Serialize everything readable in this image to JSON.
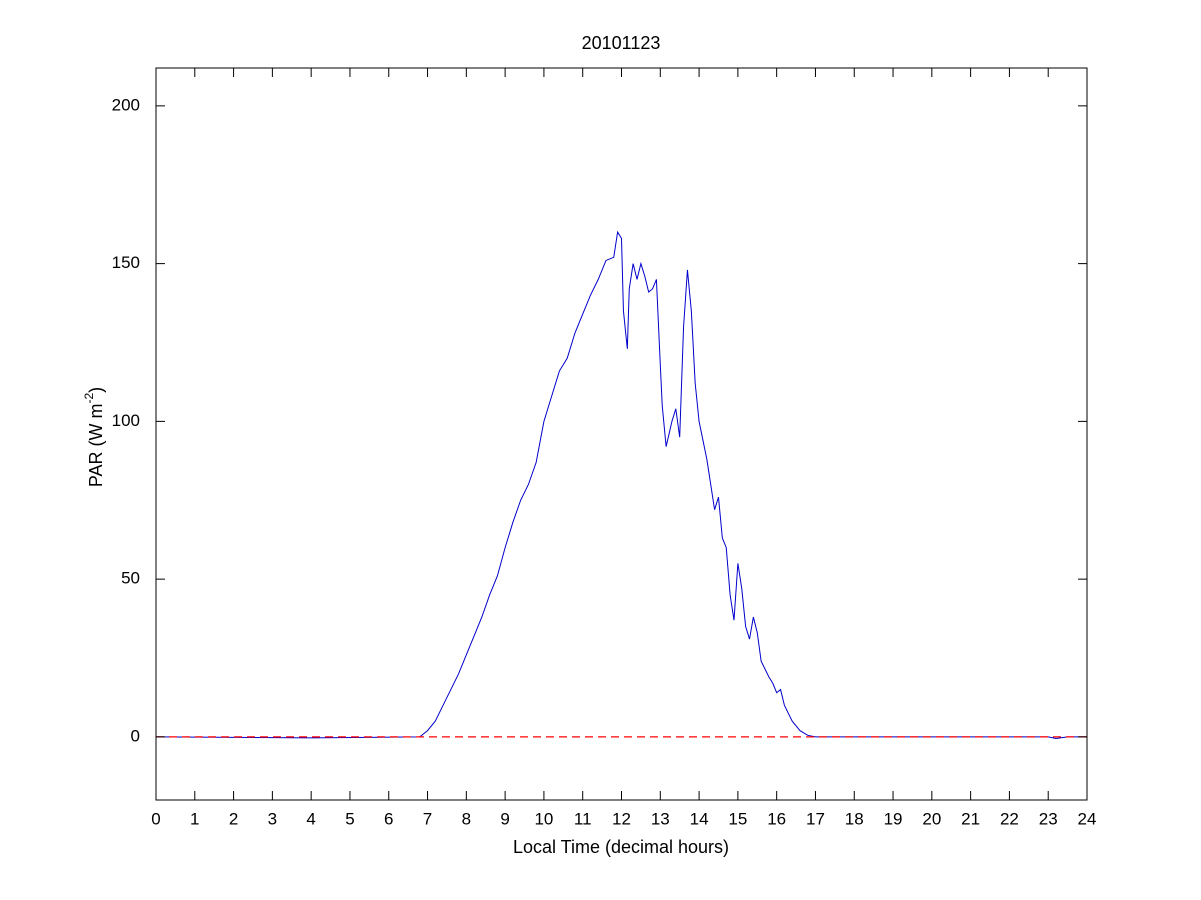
{
  "chart_data": {
    "type": "line",
    "title": "20101123",
    "xlabel": "Local Time (decimal hours)",
    "ylabel": {
      "text": "PAR (W m",
      "superscript": "-2",
      "suffix": ")"
    },
    "xlim": [
      0,
      24
    ],
    "ylim": [
      -20,
      212
    ],
    "xticks": [
      0,
      1,
      2,
      3,
      4,
      5,
      6,
      7,
      8,
      9,
      10,
      11,
      12,
      13,
      14,
      15,
      16,
      17,
      18,
      19,
      20,
      21,
      22,
      23,
      24
    ],
    "yticks": [
      0,
      50,
      100,
      150,
      200
    ],
    "grid": false,
    "x": [
      0,
      4,
      6.8,
      7.0,
      7.2,
      7.4,
      7.6,
      7.8,
      8.0,
      8.2,
      8.4,
      8.6,
      8.8,
      9.0,
      9.2,
      9.4,
      9.6,
      9.8,
      10.0,
      10.2,
      10.4,
      10.6,
      10.8,
      11.0,
      11.2,
      11.4,
      11.6,
      11.8,
      11.9,
      12.0,
      12.05,
      12.15,
      12.2,
      12.3,
      12.4,
      12.5,
      12.6,
      12.7,
      12.8,
      12.9,
      13.0,
      13.05,
      13.15,
      13.3,
      13.4,
      13.5,
      13.6,
      13.7,
      13.8,
      13.9,
      14.0,
      14.2,
      14.4,
      14.5,
      14.6,
      14.7,
      14.8,
      14.9,
      15.0,
      15.1,
      15.2,
      15.3,
      15.4,
      15.5,
      15.6,
      15.8,
      15.9,
      16.0,
      16.1,
      16.2,
      16.4,
      16.6,
      16.8,
      17.0,
      23.0,
      23.2,
      23.5,
      24
    ],
    "series": [
      {
        "color": "#0000cc",
        "style": "solid",
        "values": [
          0,
          -0.3,
          0,
          2,
          5,
          10,
          15,
          20,
          26,
          32,
          38,
          45,
          51,
          60,
          68,
          75,
          80,
          87,
          100,
          108,
          116,
          120,
          128,
          134,
          140,
          145,
          151,
          152,
          160,
          158,
          135,
          123,
          142,
          150,
          145,
          150,
          146,
          141,
          142,
          145,
          118,
          105,
          92,
          100,
          104,
          95,
          130,
          148,
          135,
          112,
          100,
          88,
          72,
          76,
          63,
          60,
          45,
          37,
          55,
          47,
          35,
          31,
          38,
          33,
          24,
          19,
          17,
          14,
          15,
          10,
          5,
          2,
          0.5,
          0,
          0,
          -0.5,
          0,
          0
        ]
      },
      {
        "color": "#ff0000",
        "style": "dashed",
        "x": [
          0,
          24
        ],
        "values": [
          0,
          0
        ]
      }
    ]
  }
}
